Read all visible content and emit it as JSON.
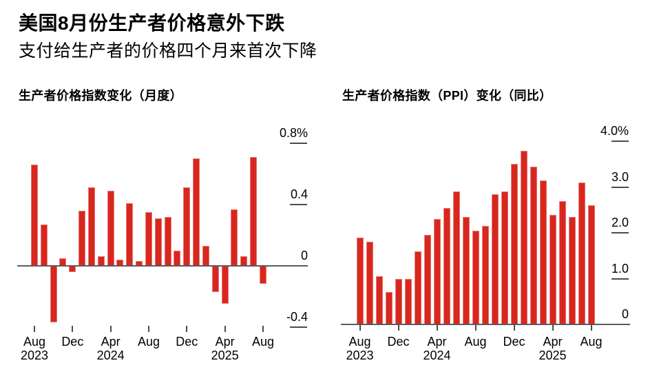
{
  "header": {
    "title": "美国8月份生产者价格意外下跌",
    "subtitle": "支付给生产者的价格四个月来首次下降"
  },
  "colors": {
    "bar_red": "#d8271e",
    "bar_edge_highlight": "#ef9b93",
    "zero_axis_gray": "#5b5c5e",
    "tick_dark": "#4a4a4a",
    "text_black": "#000000",
    "background": "#ffffff"
  },
  "chart_data": [
    {
      "type": "bar",
      "title": "生产者价格指数变化（月度）",
      "x": [
        "2023-08",
        "2023-09",
        "2023-10",
        "2023-11",
        "2023-12",
        "2024-01",
        "2024-02",
        "2024-03",
        "2024-04",
        "2024-05",
        "2024-06",
        "2024-07",
        "2024-08",
        "2024-09",
        "2024-10",
        "2024-11",
        "2024-12",
        "2025-01",
        "2025-02",
        "2025-03",
        "2025-04",
        "2025-05",
        "2025-06",
        "2025-07",
        "2025-08"
      ],
      "values": [
        0.66,
        0.27,
        -0.37,
        0.05,
        -0.04,
        0.36,
        0.51,
        0.06,
        0.49,
        0.04,
        0.41,
        0.03,
        0.35,
        0.31,
        0.32,
        0.1,
        0.51,
        0.7,
        0.13,
        -0.17,
        -0.25,
        0.37,
        0.06,
        0.71,
        -0.12
      ],
      "ylim": [
        -0.46,
        0.98
      ],
      "grid": false,
      "legend": "none",
      "y_ticks": [
        {
          "v": 0.8,
          "label": "0.8%"
        },
        {
          "v": 0.4,
          "label": "0.4"
        },
        {
          "v": 0,
          "label": "0"
        },
        {
          "v": -0.4,
          "label": "-0.4"
        }
      ],
      "x_ticks": [
        {
          "i": 0,
          "month": "Aug",
          "year": "2023"
        },
        {
          "i": 4,
          "month": "Dec",
          "year": ""
        },
        {
          "i": 8,
          "month": "Apr",
          "year": "2024"
        },
        {
          "i": 12,
          "month": "Aug",
          "year": ""
        },
        {
          "i": 16,
          "month": "Dec",
          "year": ""
        },
        {
          "i": 20,
          "month": "Apr",
          "year": "2025"
        },
        {
          "i": 24,
          "month": "Aug",
          "year": ""
        }
      ]
    },
    {
      "type": "bar",
      "title": "生产者价格指数（PPI）变化（同比）",
      "x": [
        "2023-08",
        "2023-09",
        "2023-10",
        "2023-11",
        "2023-12",
        "2024-01",
        "2024-02",
        "2024-03",
        "2024-04",
        "2024-05",
        "2024-06",
        "2024-07",
        "2024-08",
        "2024-09",
        "2024-10",
        "2024-11",
        "2024-12",
        "2025-01",
        "2025-02",
        "2025-03",
        "2025-04",
        "2025-05",
        "2025-06",
        "2025-07",
        "2025-08"
      ],
      "values": [
        1.9,
        1.8,
        1.05,
        0.7,
        1.0,
        1.0,
        1.6,
        1.95,
        2.3,
        2.55,
        2.9,
        2.35,
        2.05,
        2.15,
        2.85,
        2.9,
        3.5,
        3.8,
        3.45,
        3.15,
        2.4,
        2.7,
        2.35,
        3.1,
        2.6
      ],
      "ylim": [
        0,
        4.56
      ],
      "grid": false,
      "legend": "none",
      "y_ticks": [
        {
          "v": 4.0,
          "label": "4.0%"
        },
        {
          "v": 3.0,
          "label": "3.0"
        },
        {
          "v": 2.0,
          "label": "2.0"
        },
        {
          "v": 1.0,
          "label": "1.0"
        },
        {
          "v": 0,
          "label": "0"
        }
      ],
      "x_ticks": [
        {
          "i": 0,
          "month": "Aug",
          "year": "2023"
        },
        {
          "i": 4,
          "month": "Dec",
          "year": ""
        },
        {
          "i": 8,
          "month": "Apr",
          "year": "2024"
        },
        {
          "i": 12,
          "month": "Aug",
          "year": ""
        },
        {
          "i": 16,
          "month": "Dec",
          "year": ""
        },
        {
          "i": 20,
          "month": "Apr",
          "year": "2025"
        },
        {
          "i": 24,
          "month": "Aug",
          "year": ""
        }
      ]
    }
  ]
}
